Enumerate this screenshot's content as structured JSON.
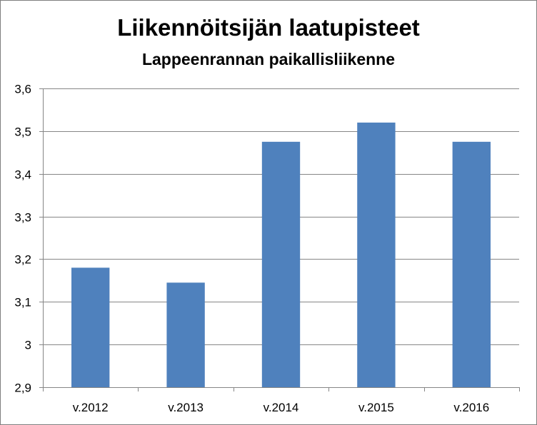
{
  "chart_data": {
    "type": "bar",
    "title": "Liikennöitsijän laatupisteet",
    "subtitle": "Lappeenrannan paikallisliikenne",
    "categories": [
      "v.2012",
      "v.2013",
      "v.2014",
      "v.2015",
      "v.2016"
    ],
    "values": [
      3.18,
      3.145,
      3.475,
      3.52,
      3.475
    ],
    "ylim": [
      2.9,
      3.6
    ],
    "yticks": [
      "2,9",
      "3",
      "3,1",
      "3,2",
      "3,3",
      "3,4",
      "3,5",
      "3,6"
    ],
    "ytick_values": [
      2.9,
      3.0,
      3.1,
      3.2,
      3.3,
      3.4,
      3.5,
      3.6
    ],
    "grid": true,
    "bar_color": "#4f81bd",
    "grid_color": "#868686"
  }
}
